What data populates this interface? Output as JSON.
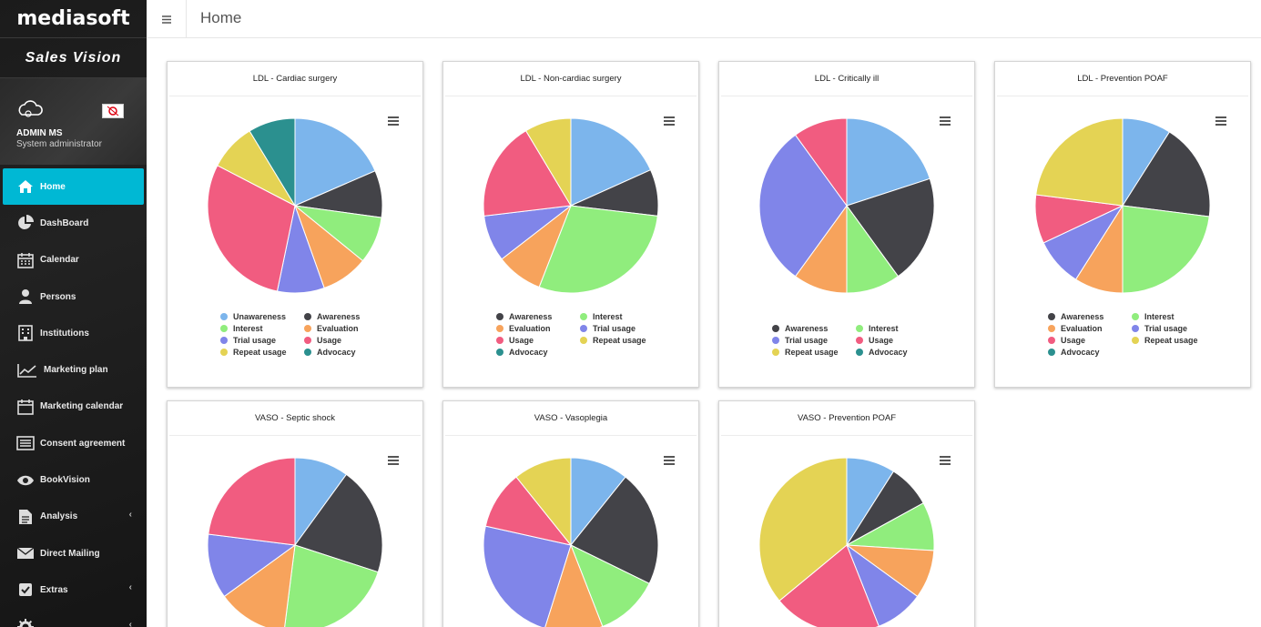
{
  "brand": {
    "logo_text": "mediasoft",
    "product": "Sales Vision"
  },
  "user": {
    "name": "ADMIN MS",
    "role": "System administrator"
  },
  "menu": [
    {
      "label": "Home",
      "icon": "home-icon",
      "active": true
    },
    {
      "label": "DashBoard",
      "icon": "pie-chart-icon"
    },
    {
      "label": "Calendar",
      "icon": "calendar-icon"
    },
    {
      "label": "Persons",
      "icon": "persons-icon"
    },
    {
      "label": "Institutions",
      "icon": "building-icon"
    },
    {
      "label": "Marketing plan",
      "icon": "line-chart-icon"
    },
    {
      "label": "Marketing calendar",
      "icon": "calendar-icon"
    },
    {
      "label": "Consent agreement",
      "icon": "list-icon"
    },
    {
      "label": "BookVision",
      "icon": "eye-icon"
    },
    {
      "label": "Analysis",
      "icon": "document-icon",
      "expandable": true
    },
    {
      "label": "Direct Mailing",
      "icon": "envelope-icon"
    },
    {
      "label": "Extras",
      "icon": "checkbox-icon",
      "expandable": true
    },
    {
      "label": "",
      "icon": "gear-icon",
      "expandable": true
    }
  ],
  "topbar": {
    "toggle_icon": "hamburger-icon",
    "title": "Home"
  },
  "colors": {
    "Unawareness": "#7cb5ec",
    "Awareness": "#434348",
    "Interest": "#90ed7d",
    "Evaluation": "#f7a35c",
    "Trial usage": "#8085e9",
    "Usage": "#f15c80",
    "Repeat usage": "#e4d354",
    "Advocacy": "#2b908f"
  },
  "chart_data": [
    {
      "type": "pie",
      "title": "LDL - Cardiac surgery",
      "slices": [
        {
          "name": "Unawareness",
          "value": 17,
          "color": "#7cb5ec"
        },
        {
          "name": "Awareness",
          "value": 8,
          "color": "#434348"
        },
        {
          "name": "Interest",
          "value": 8,
          "color": "#90ed7d"
        },
        {
          "name": "Evaluation",
          "value": 8,
          "color": "#f7a35c"
        },
        {
          "name": "Trial usage",
          "value": 8,
          "color": "#8085e9"
        },
        {
          "name": "Usage",
          "value": 27,
          "color": "#f15c80"
        },
        {
          "name": "Repeat usage",
          "value": 8,
          "color": "#e4d354"
        },
        {
          "name": "Advocacy",
          "value": 8,
          "color": "#2b908f"
        }
      ],
      "legend": [
        "Unawareness",
        "Awareness",
        "Interest",
        "Evaluation",
        "Trial usage",
        "Usage",
        "Repeat usage",
        "Advocacy"
      ]
    },
    {
      "type": "pie",
      "title": "LDL - Non-cardiac surgery",
      "slices": [
        {
          "name": "Awareness",
          "value": 17,
          "color": "#7cb5ec"
        },
        {
          "name": "Interest",
          "value": 8,
          "color": "#434348"
        },
        {
          "name": "Evaluation",
          "value": 27,
          "color": "#90ed7d"
        },
        {
          "name": "Trial usage",
          "value": 8,
          "color": "#f7a35c"
        },
        {
          "name": "Usage",
          "value": 8,
          "color": "#8085e9"
        },
        {
          "name": "Repeat usage",
          "value": 17,
          "color": "#f15c80"
        },
        {
          "name": "Advocacy",
          "value": 8,
          "color": "#e4d354"
        }
      ],
      "legend": [
        "Awareness",
        "Interest",
        "Evaluation",
        "Trial usage",
        "Usage",
        "Repeat usage",
        "Advocacy"
      ]
    },
    {
      "type": "pie",
      "title": "LDL - Critically ill",
      "slices": [
        {
          "name": "Awareness",
          "value": 20,
          "color": "#7cb5ec"
        },
        {
          "name": "Interest",
          "value": 20,
          "color": "#434348"
        },
        {
          "name": "Trial usage",
          "value": 10,
          "color": "#90ed7d"
        },
        {
          "name": "Usage",
          "value": 10,
          "color": "#f7a35c"
        },
        {
          "name": "Repeat usage",
          "value": 30,
          "color": "#8085e9"
        },
        {
          "name": "Advocacy",
          "value": 10,
          "color": "#f15c80"
        }
      ],
      "legend": [
        "Awareness",
        "Interest",
        "Trial usage",
        "Usage",
        "Repeat usage",
        "Advocacy"
      ]
    },
    {
      "type": "pie",
      "title": "LDL - Prevention POAF",
      "slices": [
        {
          "name": "Awareness",
          "value": 9,
          "color": "#7cb5ec"
        },
        {
          "name": "Interest",
          "value": 18,
          "color": "#434348"
        },
        {
          "name": "Evaluation",
          "value": 23,
          "color": "#90ed7d"
        },
        {
          "name": "Trial usage",
          "value": 9,
          "color": "#f7a35c"
        },
        {
          "name": "Usage",
          "value": 9,
          "color": "#8085e9"
        },
        {
          "name": "Repeat usage",
          "value": 9,
          "color": "#f15c80"
        },
        {
          "name": "Advocacy",
          "value": 23,
          "color": "#e4d354"
        }
      ],
      "legend": [
        "Awareness",
        "Interest",
        "Evaluation",
        "Trial usage",
        "Usage",
        "Repeat usage",
        "Advocacy"
      ]
    },
    {
      "type": "pie",
      "title": "VASO - Septic shock",
      "slices": [
        {
          "name": "",
          "value": 10,
          "color": "#7cb5ec"
        },
        {
          "name": "",
          "value": 20,
          "color": "#434348"
        },
        {
          "name": "",
          "value": 22,
          "color": "#90ed7d"
        },
        {
          "name": "",
          "value": 13,
          "color": "#f7a35c"
        },
        {
          "name": "",
          "value": 12,
          "color": "#8085e9"
        },
        {
          "name": "",
          "value": 23,
          "color": "#f15c80"
        }
      ],
      "legend": []
    },
    {
      "type": "pie",
      "title": "VASO - Vasoplegia",
      "slices": [
        {
          "name": "",
          "value": 10,
          "color": "#7cb5ec"
        },
        {
          "name": "",
          "value": 20,
          "color": "#434348"
        },
        {
          "name": "",
          "value": 11,
          "color": "#90ed7d"
        },
        {
          "name": "",
          "value": 10,
          "color": "#f7a35c"
        },
        {
          "name": "",
          "value": 22,
          "color": "#8085e9"
        },
        {
          "name": "",
          "value": 10,
          "color": "#f15c80"
        },
        {
          "name": "",
          "value": 10,
          "color": "#e4d354"
        }
      ],
      "legend": []
    },
    {
      "type": "pie",
      "title": "VASO - Prevention POAF",
      "slices": [
        {
          "name": "",
          "value": 9,
          "color": "#7cb5ec"
        },
        {
          "name": "",
          "value": 8,
          "color": "#434348"
        },
        {
          "name": "",
          "value": 9,
          "color": "#90ed7d"
        },
        {
          "name": "",
          "value": 9,
          "color": "#f7a35c"
        },
        {
          "name": "",
          "value": 9,
          "color": "#8085e9"
        },
        {
          "name": "",
          "value": 20,
          "color": "#f15c80"
        },
        {
          "name": "",
          "value": 36,
          "color": "#e4d354"
        }
      ],
      "legend": []
    }
  ]
}
